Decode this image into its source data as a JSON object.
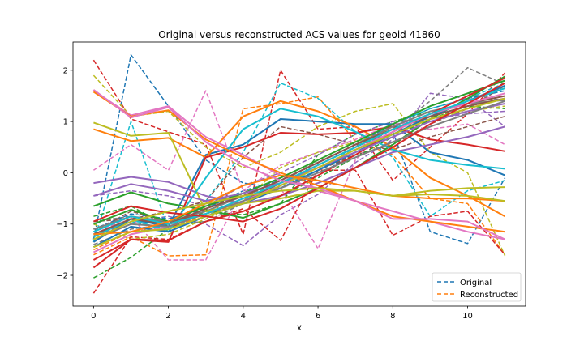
{
  "chart_data": {
    "type": "line",
    "title": "Original versus reconstructed ACS values for geoid 41860",
    "xlabel": "x",
    "ylabel": "",
    "xlim": [
      -0.55,
      11.55
    ],
    "ylim": [
      -2.6,
      2.55
    ],
    "xticks": [
      0,
      2,
      4,
      6,
      8,
      10
    ],
    "yticks": [
      -2,
      -1,
      0,
      1,
      2
    ],
    "grid": false,
    "legend_position": "lower-right",
    "legend": [
      {
        "label": "Original",
        "color": "#1f77b4",
        "dash": true
      },
      {
        "label": "Reconstructed",
        "color": "#ff7f0e",
        "dash": true
      }
    ],
    "x": [
      0,
      1,
      2,
      3,
      4,
      5,
      6,
      7,
      8,
      9,
      10,
      11
    ],
    "series": [
      {
        "color": "#1f77b4",
        "style": "dashed",
        "values": [
          -1.3,
          2.3,
          1.3,
          0.25,
          -0.2,
          -0.3,
          -0.05,
          0.4,
          0.8,
          -1.15,
          -1.38,
          -0.1
        ]
      },
      {
        "color": "#ff7f0e",
        "style": "dashed",
        "values": [
          -1.6,
          -1.25,
          -1.62,
          -1.6,
          1.25,
          1.35,
          1.48,
          0.62,
          0.35,
          -0.5,
          -0.6,
          -1.6
        ]
      },
      {
        "color": "#2ca02c",
        "style": "dashed",
        "values": [
          -2.05,
          -1.65,
          -1.1,
          -0.75,
          -0.82,
          -0.6,
          0.35,
          0.75,
          1.0,
          1.2,
          1.35,
          1.5
        ]
      },
      {
        "color": "#d62728",
        "style": "dashed",
        "values": [
          2.2,
          1.05,
          0.8,
          0.55,
          -1.2,
          2.0,
          0.85,
          0.9,
          -0.15,
          0.5,
          1.15,
          1.95
        ]
      },
      {
        "color": "#9467bd",
        "style": "dashed",
        "values": [
          -1.25,
          -0.95,
          -0.85,
          -1.0,
          -1.42,
          -0.82,
          -0.42,
          0.2,
          0.65,
          1.55,
          1.45,
          0.9
        ]
      },
      {
        "color": "#8c564b",
        "style": "dashed",
        "values": [
          -1.15,
          -0.75,
          -0.95,
          -0.65,
          -0.45,
          -0.3,
          0.05,
          0.35,
          0.55,
          0.95,
          1.25,
          1.7
        ]
      },
      {
        "color": "#e377c2",
        "style": "dashed",
        "values": [
          0.05,
          0.55,
          0.05,
          1.6,
          -0.35,
          -0.3,
          -1.48,
          0.25,
          0.95,
          0.85,
          0.95,
          0.55
        ]
      },
      {
        "color": "#7f7f7f",
        "style": "dashed",
        "values": [
          -0.95,
          -0.85,
          -1.0,
          -0.55,
          -0.45,
          -0.2,
          0.1,
          0.45,
          0.85,
          1.4,
          2.05,
          1.72
        ]
      },
      {
        "color": "#bcbd22",
        "style": "dashed",
        "values": [
          1.9,
          1.1,
          1.2,
          0.5,
          0.1,
          0.4,
          0.9,
          1.2,
          1.35,
          0.4,
          0.0,
          -1.62
        ]
      },
      {
        "color": "#17becf",
        "style": "dashed",
        "values": [
          -1.35,
          1.0,
          -1.1,
          -0.55,
          0.4,
          1.75,
          1.45,
          0.8,
          0.3,
          -0.85,
          -0.35,
          -0.15
        ]
      },
      {
        "color": "#1f77b4",
        "style": "dashed",
        "values": [
          -1.1,
          -0.8,
          -0.9,
          -0.7,
          -0.35,
          -0.15,
          0.2,
          0.55,
          0.95,
          1.25,
          1.45,
          1.6
        ]
      },
      {
        "color": "#ff7f0e",
        "style": "dashed",
        "values": [
          -1.5,
          -1.15,
          -1.05,
          -0.85,
          -0.55,
          -0.25,
          0.1,
          0.45,
          0.8,
          1.15,
          1.35,
          1.55
        ]
      },
      {
        "color": "#2ca02c",
        "style": "dashed",
        "values": [
          -0.85,
          -0.65,
          -1.05,
          -0.95,
          -0.75,
          -0.45,
          -0.1,
          0.3,
          0.7,
          1.05,
          1.3,
          1.25
        ]
      },
      {
        "color": "#d62728",
        "style": "dashed",
        "values": [
          -2.35,
          -1.25,
          -1.3,
          -0.95,
          -0.7,
          -1.32,
          0.05,
          0.05,
          -1.22,
          -0.85,
          -0.75,
          -1.6
        ]
      },
      {
        "color": "#9467bd",
        "style": "dashed",
        "values": [
          -0.45,
          -0.35,
          -0.45,
          -0.65,
          -0.25,
          0.0,
          0.35,
          0.75,
          1.0,
          1.05,
          1.15,
          1.2
        ]
      },
      {
        "color": "#8c564b",
        "style": "dashed",
        "values": [
          -0.95,
          -0.9,
          -0.75,
          -0.55,
          0.3,
          0.9,
          0.75,
          0.55,
          0.45,
          0.7,
          0.9,
          1.1
        ]
      },
      {
        "color": "#e377c2",
        "style": "dashed",
        "values": [
          -1.2,
          -0.85,
          -1.7,
          -1.7,
          -0.35,
          0.15,
          0.4,
          0.65,
          0.95,
          1.0,
          1.2,
          1.35
        ]
      },
      {
        "color": "#7f7f7f",
        "style": "dashed",
        "values": [
          -1.4,
          -1.1,
          -1.0,
          -0.95,
          -0.6,
          -0.2,
          0.25,
          0.6,
          0.95,
          1.3,
          1.55,
          1.4
        ]
      },
      {
        "color": "#bcbd22",
        "style": "dashed",
        "values": [
          -1.0,
          -1.3,
          -1.2,
          -0.9,
          -0.55,
          0.1,
          0.4,
          0.6,
          0.85,
          1.05,
          1.2,
          1.3
        ]
      },
      {
        "color": "#17becf",
        "style": "dashed",
        "values": [
          -1.2,
          -0.95,
          -1.1,
          -0.85,
          -0.5,
          -0.25,
          0.05,
          0.5,
          0.95,
          1.25,
          1.45,
          1.75
        ]
      },
      {
        "color": "#1f77b4",
        "style": "solid",
        "values": [
          -1.35,
          -0.9,
          -1.05,
          0.35,
          0.55,
          1.05,
          1.0,
          0.95,
          0.95,
          0.4,
          0.25,
          -0.05
        ]
      },
      {
        "color": "#ff7f0e",
        "style": "solid",
        "values": [
          0.85,
          0.62,
          0.68,
          0.3,
          1.1,
          1.4,
          1.2,
          0.9,
          0.5,
          -0.1,
          -0.45,
          -0.85
        ]
      },
      {
        "color": "#2ca02c",
        "style": "solid",
        "values": [
          -0.65,
          -0.38,
          -0.6,
          -0.72,
          -0.88,
          -0.6,
          -0.3,
          0.1,
          0.55,
          1.05,
          1.45,
          1.88
        ]
      },
      {
        "color": "#d62728",
        "style": "solid",
        "values": [
          -1.85,
          -1.3,
          -1.35,
          0.3,
          0.5,
          0.78,
          0.75,
          0.78,
          0.9,
          0.65,
          0.55,
          0.42
        ]
      },
      {
        "color": "#9467bd",
        "style": "solid",
        "values": [
          -0.2,
          -0.08,
          -0.18,
          -0.45,
          -0.6,
          -0.45,
          -0.2,
          0.1,
          0.4,
          0.55,
          0.7,
          0.9
        ]
      },
      {
        "color": "#8c564b",
        "style": "solid",
        "values": [
          -1.25,
          -0.9,
          -0.95,
          -0.8,
          -0.55,
          -0.2,
          0.15,
          0.5,
          0.85,
          1.15,
          1.35,
          1.5
        ]
      },
      {
        "color": "#e377c2",
        "style": "solid",
        "values": [
          1.6,
          1.12,
          1.3,
          0.7,
          0.35,
          -0.05,
          -0.35,
          -0.55,
          -0.75,
          -0.95,
          -1.15,
          -1.3
        ]
      },
      {
        "color": "#7f7f7f",
        "style": "solid",
        "values": [
          -1.1,
          -0.85,
          -0.95,
          -0.75,
          -0.45,
          -0.15,
          0.2,
          0.55,
          0.9,
          1.2,
          1.35,
          1.42
        ]
      },
      {
        "color": "#bcbd22",
        "style": "solid",
        "values": [
          0.98,
          0.72,
          0.78,
          -0.75,
          -0.6,
          -0.5,
          -0.35,
          -0.35,
          -0.45,
          -0.35,
          -0.3,
          -0.28
        ]
      },
      {
        "color": "#17becf",
        "style": "solid",
        "values": [
          -1.25,
          -0.9,
          -1.15,
          -0.1,
          0.85,
          1.25,
          1.1,
          0.8,
          0.45,
          0.25,
          0.15,
          0.08
        ]
      },
      {
        "color": "#1f77b4",
        "style": "solid",
        "values": [
          -1.45,
          -1.05,
          -1.15,
          -0.85,
          -0.6,
          -0.3,
          0.05,
          0.4,
          0.75,
          1.1,
          1.4,
          1.7
        ]
      },
      {
        "color": "#ff7f0e",
        "style": "solid",
        "values": [
          1.58,
          1.1,
          1.22,
          0.65,
          0.3,
          0.0,
          -0.25,
          -0.55,
          -0.85,
          -0.95,
          -1.05,
          -1.15
        ]
      },
      {
        "color": "#2ca02c",
        "style": "solid",
        "values": [
          -1.0,
          -0.72,
          -0.95,
          -0.65,
          -0.4,
          -0.1,
          0.25,
          0.6,
          0.95,
          1.3,
          1.55,
          1.8
        ]
      },
      {
        "color": "#d62728",
        "style": "solid",
        "values": [
          -1.7,
          -1.3,
          -1.32,
          -0.95,
          -0.75,
          -0.45,
          -0.05,
          0.35,
          0.8,
          1.15,
          1.5,
          1.85
        ]
      },
      {
        "color": "#9467bd",
        "style": "solid",
        "values": [
          -0.45,
          -0.22,
          -0.35,
          -0.55,
          -0.4,
          -0.2,
          0.1,
          0.4,
          0.7,
          1.0,
          1.2,
          1.35
        ]
      },
      {
        "color": "#8c564b",
        "style": "solid",
        "values": [
          -1.2,
          -0.9,
          -1.0,
          -0.7,
          -0.45,
          -0.15,
          0.2,
          0.55,
          0.85,
          1.1,
          1.3,
          1.45
        ]
      },
      {
        "color": "#e377c2",
        "style": "solid",
        "values": [
          -1.55,
          -1.2,
          -1.05,
          -0.8,
          -0.55,
          -0.25,
          0.1,
          0.45,
          0.8,
          1.15,
          1.35,
          1.55
        ]
      },
      {
        "color": "#7f7f7f",
        "style": "solid",
        "values": [
          -1.3,
          -1.0,
          -1.05,
          -0.8,
          -0.55,
          -0.3,
          0.0,
          0.3,
          0.6,
          0.9,
          1.15,
          1.4
        ]
      },
      {
        "color": "#bcbd22",
        "style": "solid",
        "values": [
          -1.45,
          -1.15,
          -1.1,
          -0.85,
          -0.6,
          -0.25,
          0.1,
          0.45,
          0.75,
          1.05,
          1.25,
          1.45
        ]
      },
      {
        "color": "#17becf",
        "style": "solid",
        "values": [
          -1.15,
          -0.85,
          -1.0,
          -0.8,
          -0.5,
          -0.2,
          0.15,
          0.5,
          0.85,
          1.15,
          1.4,
          1.65
        ]
      },
      {
        "color": "#d62728",
        "style": "solid",
        "values": [
          -0.95,
          -0.65,
          -0.78,
          -0.85,
          -0.95,
          -0.7,
          -0.3,
          0.1,
          0.5,
          0.95,
          1.35,
          1.75
        ]
      },
      {
        "color": "#ff7f0e",
        "style": "solid",
        "values": [
          -1.2,
          -1.15,
          -0.95,
          -0.6,
          -0.25,
          -0.05,
          -0.15,
          -0.3,
          -0.45,
          -0.5,
          -0.5,
          -0.55
        ]
      },
      {
        "color": "#e377c2",
        "style": "solid",
        "values": [
          1.62,
          1.08,
          1.28,
          0.6,
          0.15,
          -0.15,
          -0.3,
          -0.55,
          -0.9,
          -0.9,
          -0.95,
          -1.3
        ]
      },
      {
        "color": "#bcbd22",
        "style": "solid",
        "values": [
          -1.3,
          -0.95,
          -0.75,
          -0.6,
          -0.45,
          -0.35,
          -0.3,
          -0.35,
          -0.45,
          -0.42,
          -0.45,
          -0.55
        ]
      }
    ]
  }
}
